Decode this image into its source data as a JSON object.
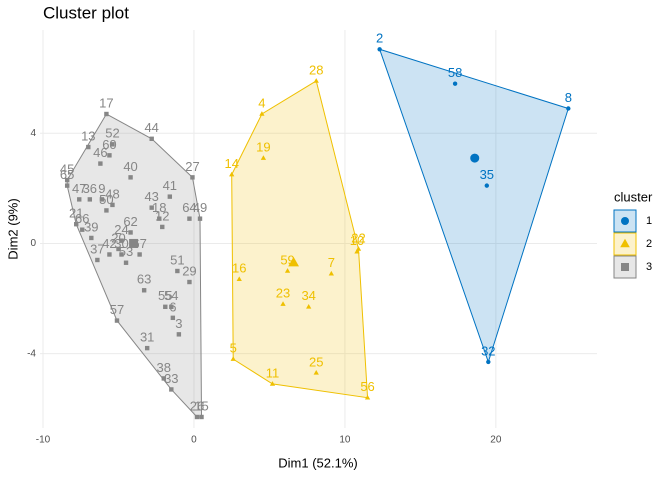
{
  "chart_data": {
    "type": "scatter",
    "title": "Cluster plot",
    "x_label": "Dim1 (52.1%)",
    "y_label": "Dim2 (9%)",
    "xlim": [
      -10.2,
      26.7
    ],
    "ylim": [
      -6.7,
      7.75
    ],
    "xticks": [
      -10,
      0,
      10,
      20
    ],
    "yticks": [
      -4,
      0,
      4
    ],
    "grid": true,
    "legend_title": "cluster",
    "legend_position": "right",
    "series": [
      {
        "name": "1",
        "color": "#0073C2",
        "shape": "circle",
        "labels": [
          "2",
          "58",
          "8",
          "35",
          "32"
        ],
        "x": [
          12.3,
          17.3,
          24.8,
          19.4,
          19.5
        ],
        "y": [
          7.05,
          5.8,
          4.9,
          2.1,
          -4.3
        ],
        "center": [
          18.6,
          3.1
        ]
      },
      {
        "name": "2",
        "color": "#EFC000",
        "shape": "triangle",
        "labels": [
          "28",
          "4",
          "14",
          "19",
          "22",
          "10",
          "16",
          "59",
          "7",
          "23",
          "34",
          "5",
          "11",
          "25",
          "56"
        ],
        "x": [
          8.1,
          4.5,
          2.5,
          4.6,
          10.9,
          10.8,
          3.0,
          6.2,
          9.1,
          5.9,
          7.6,
          2.6,
          5.2,
          8.1,
          11.5
        ],
        "y": [
          5.9,
          4.7,
          2.5,
          3.1,
          -0.2,
          -0.3,
          -1.3,
          -1.0,
          -1.1,
          -2.2,
          -2.3,
          -4.2,
          -5.1,
          -4.7,
          -5.6
        ],
        "center": [
          6.6,
          -0.7
        ]
      },
      {
        "name": "3",
        "color": "#868686",
        "shape": "square",
        "labels": [
          "17",
          "13",
          "52",
          "60",
          "46",
          "44",
          "40",
          "27",
          "45",
          "65",
          "41",
          "47",
          "36",
          "9",
          "43",
          "48",
          "50",
          "18",
          "64",
          "49",
          "21",
          "66",
          "39",
          "12",
          "62",
          "24",
          "42",
          "37",
          "30",
          "53",
          "20",
          "67",
          "51",
          "29",
          "63",
          "55",
          "54",
          "6",
          "3",
          "57",
          "31",
          "38",
          "33",
          "26",
          "15"
        ],
        "x": [
          -5.8,
          -7.0,
          -5.4,
          -5.6,
          -6.2,
          -2.8,
          -4.2,
          -0.1,
          -8.4,
          -8.4,
          -1.6,
          -7.6,
          -6.9,
          -6.1,
          -2.8,
          -5.4,
          -5.8,
          -2.3,
          -0.3,
          0.4,
          -7.8,
          -7.4,
          -6.8,
          -2.1,
          -4.2,
          -4.8,
          -5.6,
          -6.4,
          -4.8,
          -4.5,
          -5.0,
          -3.6,
          -1.1,
          -0.3,
          -3.3,
          -1.9,
          -1.5,
          -1.4,
          -1.0,
          -5.1,
          -3.1,
          -2.0,
          -1.5,
          0.2,
          0.5
        ],
        "y": [
          4.7,
          3.5,
          3.6,
          3.2,
          2.9,
          3.8,
          2.4,
          2.4,
          2.3,
          2.1,
          1.7,
          1.6,
          1.6,
          1.6,
          1.3,
          1.4,
          1.2,
          0.9,
          0.9,
          0.9,
          0.7,
          0.5,
          0.2,
          0.6,
          0.4,
          0.1,
          -0.4,
          -0.6,
          -0.4,
          -0.7,
          -0.2,
          -0.4,
          -1.0,
          -1.4,
          -1.7,
          -2.3,
          -2.3,
          -2.7,
          -3.3,
          -2.8,
          -3.8,
          -4.9,
          -5.3,
          -6.3,
          -6.3
        ],
        "center": [
          -4.0,
          0.0
        ]
      }
    ]
  }
}
